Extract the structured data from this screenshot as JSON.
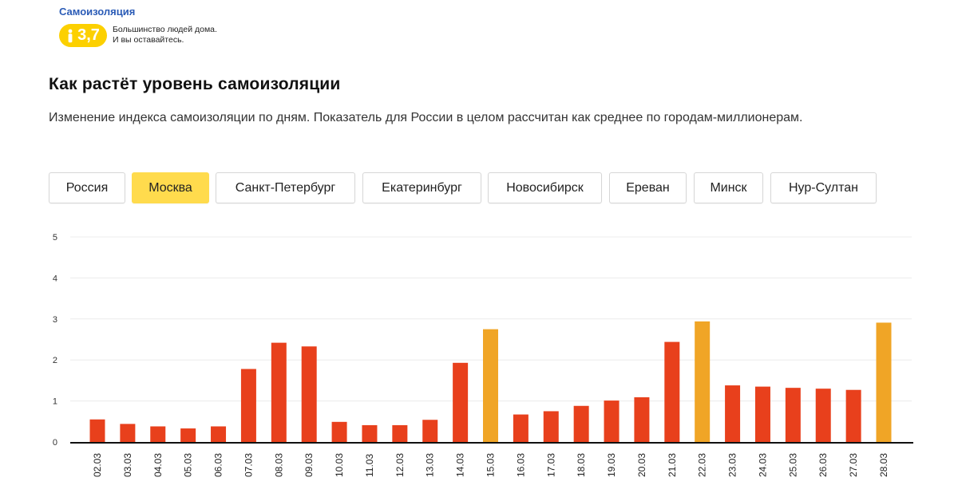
{
  "widget": {
    "title": "Самоизоляция",
    "index_value": "3,7",
    "line1": "Большинство людей дома.",
    "line2": "И вы оставайтесь.",
    "badge_color": "#fcd000",
    "icon": "person-icon"
  },
  "heading": "Как растёт уровень самоизоляции",
  "description": "Изменение индекса самоизоляции по дням. Показатель для России в целом рассчитан как среднее по городам-миллионерам.",
  "tabs": [
    {
      "label": "Россия",
      "active": false
    },
    {
      "label": "Москва",
      "active": true
    },
    {
      "label": "Санкт-Петербург",
      "active": false
    },
    {
      "label": "Екатеринбург",
      "active": false
    },
    {
      "label": "Новосибирск",
      "active": false
    },
    {
      "label": "Ереван",
      "active": false
    },
    {
      "label": "Минск",
      "active": false
    },
    {
      "label": "Нур-Султан",
      "active": false
    }
  ],
  "colors": {
    "accent_tab": "#ffdb4d",
    "bar_weekday": "#e8401c",
    "bar_highlight": "#f0a526"
  },
  "chart_data": {
    "type": "bar",
    "ylim": [
      0,
      5
    ],
    "yticks": [
      0,
      1,
      2,
      3,
      4,
      5
    ],
    "grid": true,
    "categories": [
      "02.03",
      "03.03",
      "04.03",
      "05.03",
      "06.03",
      "07.03",
      "08.03",
      "09.03",
      "10.03",
      "11.03",
      "12.03",
      "13.03",
      "14.03",
      "15.03",
      "16.03",
      "17.03",
      "18.03",
      "19.03",
      "20.03",
      "21.03",
      "22.03",
      "23.03",
      "24.03",
      "25.03",
      "26.03",
      "27.03",
      "28.03"
    ],
    "values": [
      0.55,
      0.44,
      0.38,
      0.33,
      0.38,
      1.78,
      2.42,
      2.33,
      0.49,
      0.41,
      0.41,
      0.54,
      1.93,
      2.75,
      0.67,
      0.75,
      0.88,
      1.01,
      1.09,
      2.44,
      2.94,
      1.38,
      1.35,
      1.32,
      1.3,
      1.27,
      2.91
    ],
    "highlight": [
      "15.03",
      "22.03",
      "28.03"
    ]
  }
}
